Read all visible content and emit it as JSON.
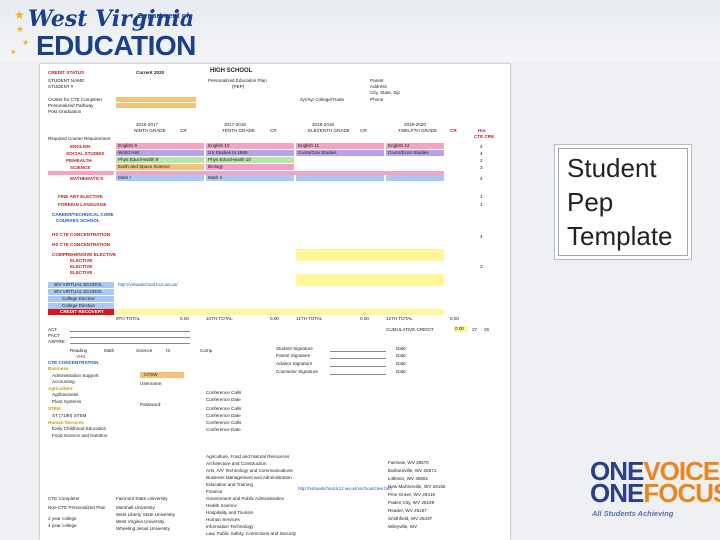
{
  "header": {
    "logo_line1": "West Virginia",
    "logo_dept": "Department of",
    "logo_line2": "EDUCATION"
  },
  "callout": {
    "line1": "Student",
    "line2": "Pep",
    "line3": "Template"
  },
  "brand": {
    "one1": "ONE",
    "voice": "VOICE",
    "one2": "ONE",
    "focus": "FOCUS",
    "tagline": "All Students Achieving"
  },
  "doc": {
    "credit_status": "CREDIT STATUS",
    "current_year": "Current 2020",
    "high_school": "HIGH SCHOOL",
    "student_name": "STUDENT NAME:",
    "student_no": "STUDENT #",
    "pep_title": "Personalized Education Plan",
    "pep": "(PEP)",
    "parent": "Parent",
    "address": "Address",
    "city": "City, State, Zip",
    "phone": "Phone",
    "cluster": "Cluster for CTE Completer",
    "pathway": "Personalized Pathway",
    "post_grad": "Post Graduation",
    "year_college": "2yr/4yr College/Trade",
    "years": [
      "2016-2017",
      "2017-2018",
      "2018-2019",
      "2019-2020"
    ],
    "grades": [
      "NINTH GRADE",
      "TENTH GRADE",
      "ELEVENTH GRADE",
      "TWELFTH GRADE"
    ],
    "cr": "CR",
    "hrs": "Hrs",
    "cte": "CTE CRE",
    "required_note": "Required Course Requirement",
    "english": "ENGLISH",
    "social": "SOCIAL STUDIES",
    "physhealth": "PE/HEALTH",
    "science": "SCIENCE",
    "math": "MATHEMATICS",
    "fine_art": "FINE ART ELECTIVE",
    "foreign": "FOREIGN LANGUAGE",
    "career": "CAREER/TECHNICAL CORE",
    "courses_school": "COURSES SCHOOL",
    "hs_cte1": "HS CTE CONCENTRATION",
    "hs_cte2": "HS CTE CONCENTRATION",
    "elective_head": "COMPREHENSIVE ELECTIVE",
    "elective1": "ELECTIVE",
    "elective2": "ELECTIVE",
    "elective3": "ELECTIVE",
    "wv_virtual1": "WV VIRTUAL SCHOOL",
    "wv_virtual2": "WV VIRTUAL SCHOOL",
    "college_elec1": "College Elective",
    "college_elec2": "College Elective",
    "credit_recovery": "CREDIT RECOVERY",
    "row_english": [
      "English 9",
      "English 10",
      "English 11",
      "English 12"
    ],
    "row_social": [
      "World Hist",
      "US Studies to 1865",
      "Civics/Gov Studies",
      "Civics/Econ Studies"
    ],
    "row_pe": [
      "Phys Educ/Health 9",
      "Phys Educ/Health 10",
      "",
      ""
    ],
    "row_sci": [
      "Earth and Space Science",
      "Biology",
      "",
      ""
    ],
    "row_math": [
      "Math I",
      "Math II",
      "",
      ""
    ],
    "cr_totals": [
      "4",
      "4",
      "2",
      "3",
      "4",
      "1",
      "1"
    ],
    "virtual_url": "http://virtualschool.k12.wv.us/",
    "ninth_total": "9TH TOTAL",
    "tenth_total": "10TH TOTAL",
    "eleventh_total": "11TH TOTAL",
    "twelfth_total": "12TH TOTAL",
    "cumulative": "CUMULATIVE CREDIT",
    "totals_vals": [
      "0.00",
      "0.00",
      "0.00",
      "0.00",
      "0.00",
      "0.00",
      "0.00"
    ],
    "grand_totals": [
      "0.00",
      "37",
      "26"
    ],
    "act": "ACT",
    "pact": "PACT",
    "aspire": "ASPIRE",
    "reading": "Reading",
    "math_h": "Math",
    "science_h": "Science",
    "is": "IS",
    "comp": "Comp",
    "student_sig": "Student Signature",
    "parent_sig": "Parent Signature",
    "advisor_sig": "Advisor Signature",
    "counselor_sig": "Counselor Signature",
    "date": "Date:",
    "vhs": "VHS",
    "cte_concentration": "CTE CONCENTRATION",
    "business": "Business",
    "admin_support": "Administration Support",
    "accounting": "Accounting",
    "agriculture": "Agriculture",
    "agribusiness": "Agribusiness",
    "plant_systems": "Plant Systems",
    "stem": "STEM",
    "stem_course": "ST (7190) STEM",
    "human_services": "Human Services",
    "early_childhood": "Early Childhood Education",
    "food_science": "Food Science and Nutrition",
    "cfsw": "CFSW",
    "username": "Username:",
    "password": "Password:",
    "conf_calls": [
      "Conference Calls",
      "Conference Date",
      "Conference Calls",
      "Conference Date",
      "Conference Calls",
      "Conference Date"
    ],
    "clusters": [
      "Agriculture, Food and Natural Resources",
      "Architecture and Construction",
      "Arts, A/V Technology and Communications",
      "Business Management and Administration",
      "Education and Training",
      "Finance",
      "Government and Public Administration",
      "Health Science",
      "Hospitality and Tourism",
      "Human Services",
      "Information Technology",
      "Law, Public Safety, Corrections and Security"
    ],
    "schools": [
      "Fairmont State University",
      "Marshall University",
      "West Liberty State University",
      "West Virginia University",
      "Wheeling Jesuit University"
    ],
    "school_labels": [
      "CTE Completer",
      "Non-CTE Personalized Plan",
      "2 year college",
      "4 year college"
    ],
    "cities": [
      "Fairview, WV  26570",
      "Barbourville, WV 26571",
      "Littleton, WV  26581",
      "New Martinsville, WV 26155",
      "Pine Grove, WV 26419",
      "Paden City, WV 26159",
      "Reader, WV 26167",
      "Smithfield, WV 26437",
      "Wileyville, WV"
    ],
    "url2": "http://virtualschool.k12.wv.us/vschool/ctes.htm"
  }
}
